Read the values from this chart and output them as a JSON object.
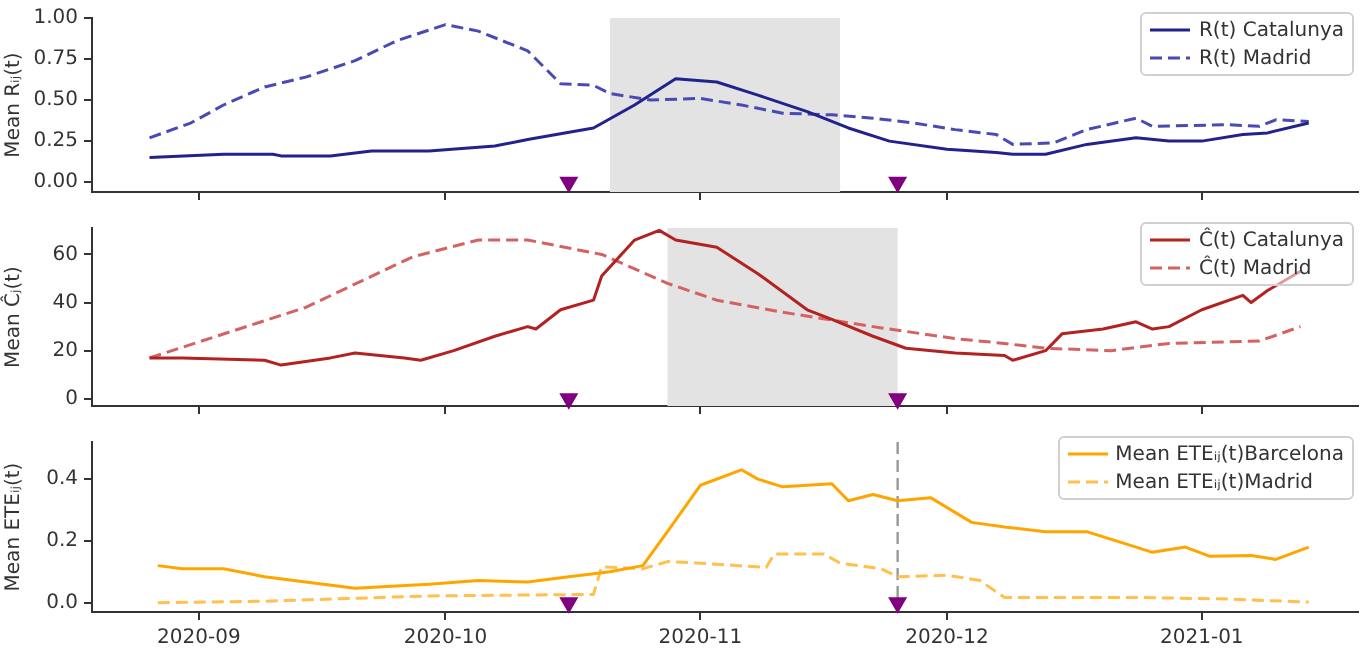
{
  "chart_data": [
    {
      "type": "line",
      "ylabel": "Mean Rᵢⱼ(t)",
      "xlim": [
        "2020-08-19",
        "2021-01-20"
      ],
      "xticks": [
        {
          "value": "2020-09-01",
          "label": null
        },
        {
          "value": "2020-10-01",
          "label": null
        },
        {
          "value": "2020-11-01",
          "label": null
        },
        {
          "value": "2020-12-01",
          "label": null
        },
        {
          "value": "2021-01-01",
          "label": null
        }
      ],
      "ylim": [
        -0.06,
        1.0
      ],
      "yticks": [
        {
          "value": 0,
          "label": "0.00"
        },
        {
          "value": 0.25,
          "label": "0.25"
        },
        {
          "value": 0.5,
          "label": "0.50"
        },
        {
          "value": 0.75,
          "label": "0.75"
        },
        {
          "value": 1,
          "label": "1.00"
        }
      ],
      "tick_labels": "y",
      "grid": false,
      "legend": "top right",
      "bands": [
        {
          "axis": "x",
          "from": "2020-10-21",
          "to": "2020-11-18",
          "color": "#e3e3e3"
        }
      ],
      "series": [
        {
          "name": "R(t) Catalunya",
          "color": "#22228e",
          "line_style": "solid",
          "marker": "none",
          "x": [
            "2020-08-26",
            "2020-09-04",
            "2020-09-10",
            "2020-09-11",
            "2020-09-17",
            "2020-09-22",
            "2020-09-29",
            "2020-10-07",
            "2020-10-11",
            "2020-10-19",
            "2020-10-24",
            "2020-10-29",
            "2020-11-03",
            "2020-11-08",
            "2020-11-14",
            "2020-11-19",
            "2020-11-24",
            "2020-12-01",
            "2020-12-07",
            "2020-12-09",
            "2020-12-13",
            "2020-12-18",
            "2020-12-24",
            "2020-12-28",
            "2021-01-01",
            "2021-01-06",
            "2021-01-09",
            "2021-01-14"
          ],
          "values": [
            0.15,
            0.17,
            0.17,
            0.16,
            0.16,
            0.19,
            0.19,
            0.22,
            0.26,
            0.33,
            0.47,
            0.63,
            0.61,
            0.53,
            0.43,
            0.33,
            0.25,
            0.2,
            0.18,
            0.17,
            0.17,
            0.23,
            0.27,
            0.25,
            0.25,
            0.29,
            0.3,
            0.36
          ]
        },
        {
          "name": "R(t) Madrid",
          "color": "#4a4ab4",
          "line_style": "dashed",
          "marker": "none",
          "x": [
            "2020-08-26",
            "2020-08-31",
            "2020-09-04",
            "2020-09-09",
            "2020-09-14",
            "2020-09-20",
            "2020-09-25",
            "2020-10-01",
            "2020-10-05",
            "2020-10-11",
            "2020-10-15",
            "2020-10-19",
            "2020-10-21",
            "2020-10-26",
            "2020-11-01",
            "2020-11-06",
            "2020-11-11",
            "2020-11-17",
            "2020-11-22",
            "2020-11-27",
            "2020-12-02",
            "2020-12-07",
            "2020-12-09",
            "2020-12-14",
            "2020-12-18",
            "2020-12-24",
            "2020-12-26",
            "2021-01-04",
            "2021-01-08",
            "2021-01-10",
            "2021-01-14"
          ],
          "values": [
            0.27,
            0.36,
            0.47,
            0.58,
            0.64,
            0.74,
            0.86,
            0.96,
            0.92,
            0.8,
            0.6,
            0.59,
            0.54,
            0.5,
            0.51,
            0.47,
            0.42,
            0.41,
            0.39,
            0.36,
            0.32,
            0.29,
            0.23,
            0.24,
            0.32,
            0.39,
            0.34,
            0.35,
            0.34,
            0.38,
            0.37
          ]
        },
        {
          "type": "scatter",
          "color": "#800080",
          "marker": "triangle",
          "x": [
            "2020-10-16",
            "2020-11-25"
          ],
          "values": [
            0,
            0
          ]
        }
      ]
    },
    {
      "type": "line",
      "ylabel": "Mean Ĉⱼ(t)",
      "xlim": [
        "2020-08-19",
        "2021-01-20"
      ],
      "xticks": [
        {
          "value": "2020-09-01",
          "label": null
        },
        {
          "value": "2020-10-01",
          "label": null
        },
        {
          "value": "2020-11-01",
          "label": null
        },
        {
          "value": "2020-12-01",
          "label": null
        },
        {
          "value": "2021-01-01",
          "label": null
        }
      ],
      "ylim": [
        -3,
        71
      ],
      "yticks": [
        0,
        20,
        40,
        60
      ],
      "tick_labels": "y",
      "grid": false,
      "legend": "top right",
      "bands": [
        {
          "axis": "x",
          "from": "2020-10-28",
          "to": "2020-11-25",
          "color": "#e3e3e3"
        }
      ],
      "series": [
        {
          "name": "Ĉ(t) Catalunya",
          "color": "#b22222",
          "line_style": "solid",
          "marker": "none",
          "x": [
            "2020-08-26",
            "2020-08-30",
            "2020-09-09",
            "2020-09-11",
            "2020-09-17",
            "2020-09-20",
            "2020-09-26",
            "2020-09-28",
            "2020-10-02",
            "2020-10-07",
            "2020-10-11",
            "2020-10-12",
            "2020-10-15",
            "2020-10-19",
            "2020-10-20",
            "2020-10-24",
            "2020-10-27",
            "2020-10-29",
            "2020-11-03",
            "2020-11-08",
            "2020-11-14",
            "2020-11-17",
            "2020-11-22",
            "2020-11-26",
            "2020-12-02",
            "2020-12-08",
            "2020-12-09",
            "2020-12-13",
            "2020-12-15",
            "2020-12-20",
            "2020-12-24",
            "2020-12-26",
            "2020-12-28",
            "2021-01-01",
            "2021-01-06",
            "2021-01-07",
            "2021-01-09",
            "2021-01-13"
          ],
          "values": [
            17,
            17,
            16,
            14,
            17,
            19,
            17,
            16,
            20,
            26,
            30,
            29,
            37,
            41,
            51,
            66,
            70,
            66,
            63,
            52,
            37,
            33,
            26,
            21,
            19,
            18,
            16,
            20,
            27,
            29,
            32,
            29,
            30,
            37,
            43,
            40,
            45,
            53
          ]
        },
        {
          "name": "Ĉ(t) Madrid",
          "color": "#d46262",
          "line_style": "dashed",
          "marker": "none",
          "x": [
            "2020-08-26",
            "2020-09-14",
            "2020-09-27",
            "2020-10-05",
            "2020-10-11",
            "2020-10-20",
            "2020-10-28",
            "2020-11-03",
            "2020-11-11",
            "2020-11-22",
            "2020-12-02",
            "2020-12-08",
            "2020-12-13",
            "2020-12-21",
            "2020-12-28",
            "2021-01-08",
            "2021-01-13"
          ],
          "values": [
            17,
            38,
            59,
            66,
            66,
            60,
            48,
            41,
            36,
            30,
            25,
            23,
            21,
            20,
            23,
            24,
            30
          ]
        },
        {
          "type": "scatter",
          "color": "#800080",
          "marker": "triangle",
          "x": [
            "2020-10-16",
            "2020-11-25"
          ],
          "values": [
            0,
            0
          ]
        }
      ]
    },
    {
      "type": "line",
      "ylabel": "Mean ETEᵢⱼ(t)",
      "xlim": [
        "2020-08-19",
        "2021-01-20"
      ],
      "xticks": [
        {
          "value": "2020-09-01",
          "label": "2020-09"
        },
        {
          "value": "2020-10-01",
          "label": "2020-10"
        },
        {
          "value": "2020-11-01",
          "label": "2020-11"
        },
        {
          "value": "2020-12-01",
          "label": "2020-12"
        },
        {
          "value": "2021-01-01",
          "label": "2021-01"
        }
      ],
      "ylim": [
        -0.03,
        0.52
      ],
      "yticks": [
        {
          "value": 0,
          "label": "0.0"
        },
        {
          "value": 0.2,
          "label": "0.2"
        },
        {
          "value": 0.4,
          "label": "0.4"
        }
      ],
      "grid": false,
      "legend": "top right",
      "ref_lines": [
        {
          "axis": "x",
          "value": "2020-11-25",
          "color": "#999999",
          "line_style": "dashed"
        }
      ],
      "series": [
        {
          "name": "Mean ETEᵢⱼ(t)Barcelona",
          "color": "#ffa500",
          "line_style": "solid",
          "marker": "none",
          "x": [
            "2020-08-27",
            "2020-08-30",
            "2020-09-04",
            "2020-09-09",
            "2020-09-14",
            "2020-09-20",
            "2020-09-25",
            "2020-09-29",
            "2020-10-05",
            "2020-10-11",
            "2020-10-16",
            "2020-10-21",
            "2020-10-25",
            "2020-10-28",
            "2020-11-01",
            "2020-11-06",
            "2020-11-08",
            "2020-11-11",
            "2020-11-17",
            "2020-11-19",
            "2020-11-22",
            "2020-11-25",
            "2020-11-29",
            "2020-12-04",
            "2020-12-08",
            "2020-12-13",
            "2020-12-18",
            "2020-12-24",
            "2020-12-26",
            "2020-12-30",
            "2021-01-02",
            "2021-01-07",
            "2021-01-10",
            "2021-01-14"
          ],
          "values": [
            0.12,
            0.11,
            0.11,
            0.084,
            0.067,
            0.047,
            0.054,
            0.06,
            0.072,
            0.067,
            0.084,
            0.1,
            0.12,
            0.23,
            0.38,
            0.43,
            0.4,
            0.375,
            0.385,
            0.33,
            0.35,
            0.33,
            0.34,
            0.26,
            0.245,
            0.23,
            0.23,
            0.18,
            0.163,
            0.18,
            0.15,
            0.153,
            0.14,
            0.18
          ]
        },
        {
          "name": "Mean ETEᵢⱼ(t)Madrid",
          "color": "#ffc04d",
          "line_style": "dashed",
          "marker": "none",
          "x": [
            "2020-08-27",
            "2020-09-09",
            "2020-09-29",
            "2020-10-19",
            "2020-10-20",
            "2020-10-25",
            "2020-10-28",
            "2020-11-01",
            "2020-11-09",
            "2020-11-10",
            "2020-11-16",
            "2020-11-18",
            "2020-11-23",
            "2020-11-25",
            "2020-12-01",
            "2020-12-05",
            "2020-12-08",
            "2020-12-24",
            "2021-01-04",
            "2021-01-14"
          ],
          "values": [
            0,
            0.005,
            0.022,
            0.027,
            0.116,
            0.11,
            0.133,
            0.128,
            0.114,
            0.158,
            0.158,
            0.128,
            0.11,
            0.084,
            0.089,
            0.072,
            0.017,
            0.017,
            0.012,
            0.002
          ]
        },
        {
          "type": "scatter",
          "color": "#800080",
          "marker": "triangle",
          "x": [
            "2020-10-16",
            "2020-11-25"
          ],
          "values": [
            0,
            0
          ]
        }
      ]
    }
  ]
}
